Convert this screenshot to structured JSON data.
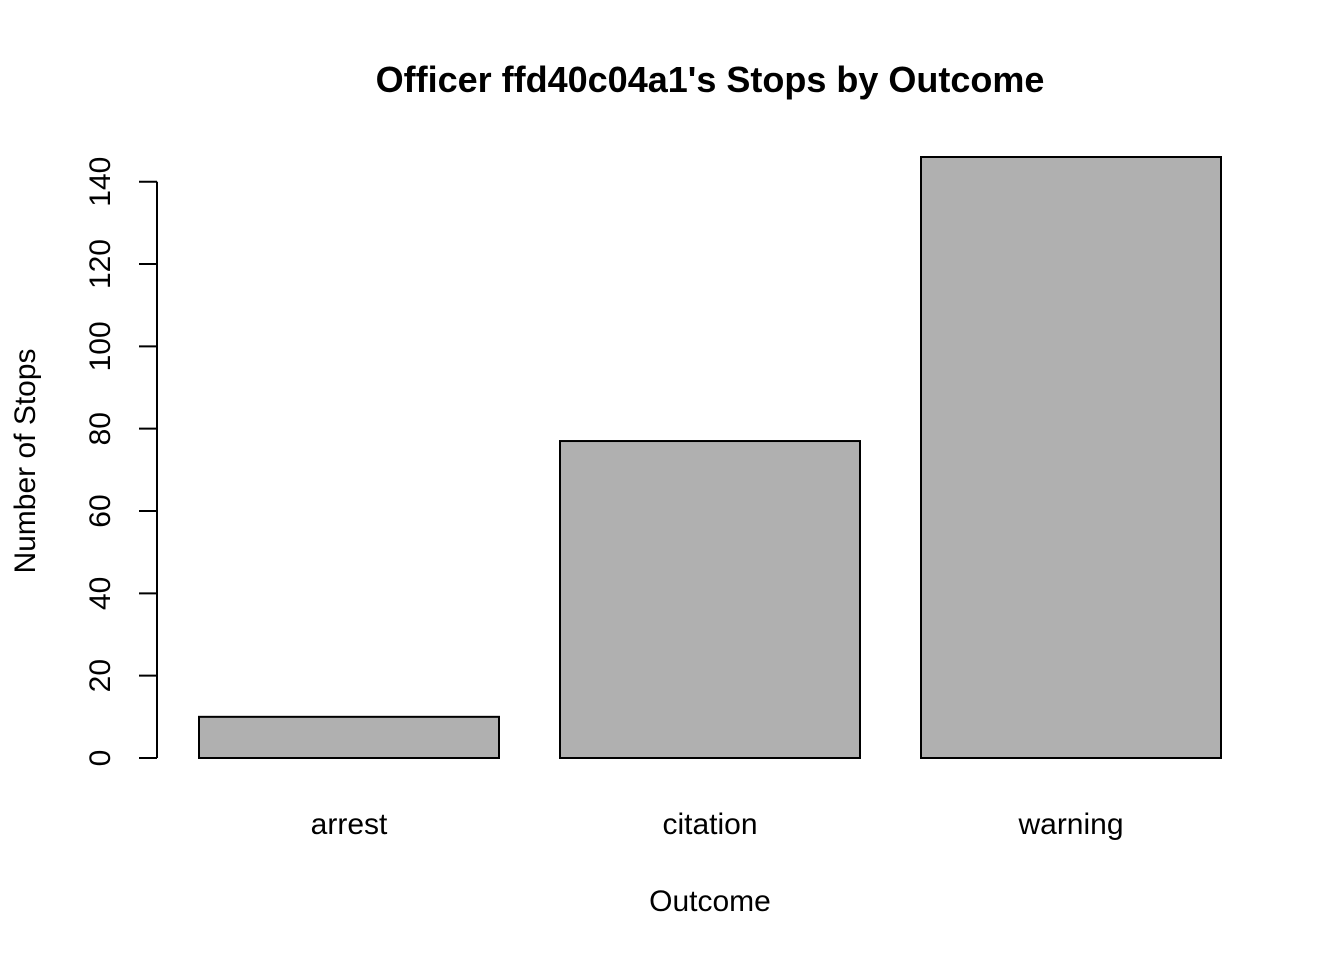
{
  "chart_data": {
    "type": "bar",
    "title": "Officer ffd40c04a1's Stops by Outcome",
    "xlabel": "Outcome",
    "ylabel": "Number of Stops",
    "categories": [
      "arrest",
      "citation",
      "warning"
    ],
    "values": [
      10,
      77,
      146
    ],
    "ylim": [
      0,
      146
    ],
    "yticks": [
      0,
      20,
      40,
      60,
      80,
      100,
      120,
      140
    ],
    "grid": false,
    "colors": {
      "bar_fill": "#b0b0b0",
      "bar_stroke": "#000000"
    }
  }
}
